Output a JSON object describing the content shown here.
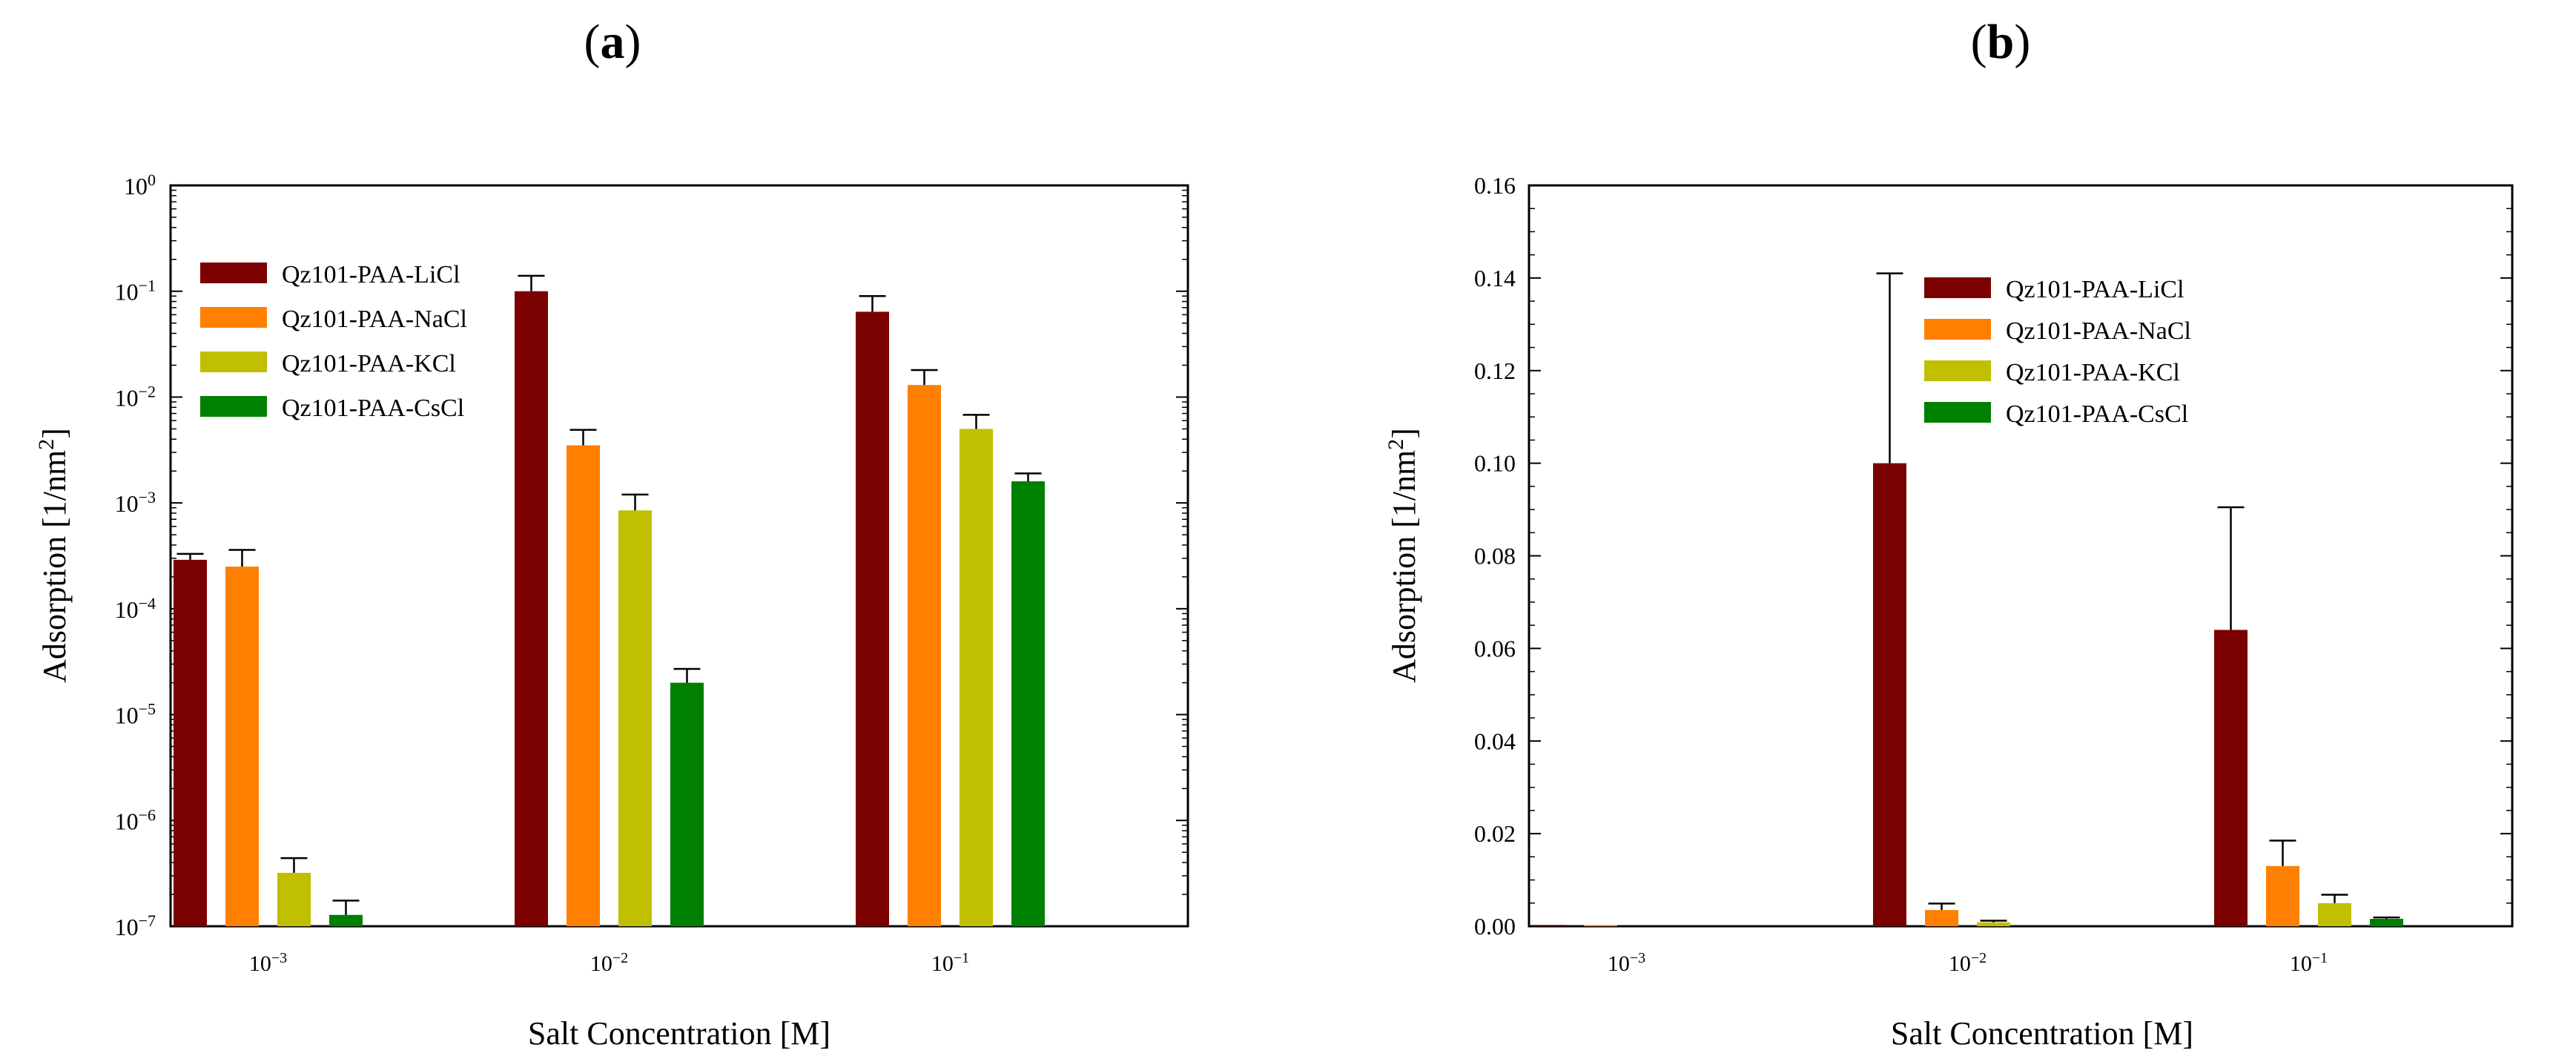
{
  "panels": [
    {
      "label": "(a)",
      "label_letter": "a",
      "ylabel_prefix": "Adsorption [1/nm",
      "ylabel_sup": "2",
      "ylabel_suffix": "]",
      "xlabel": "Salt Concentration [M]"
    },
    {
      "label": "(b)",
      "label_letter": "b",
      "ylabel_prefix": "Adsorption [1/nm",
      "ylabel_sup": "2",
      "ylabel_suffix": "]",
      "xlabel": "Salt Concentration [M]"
    }
  ],
  "chart_data": [
    {
      "type": "bar",
      "panel": "a",
      "yscale": "log",
      "ylim": [
        1e-07,
        1
      ],
      "yticks": [
        {
          "mantissa": "10",
          "exp": "−7"
        },
        {
          "mantissa": "10",
          "exp": "−6"
        },
        {
          "mantissa": "10",
          "exp": "−5"
        },
        {
          "mantissa": "10",
          "exp": "−4"
        },
        {
          "mantissa": "10",
          "exp": "−3"
        },
        {
          "mantissa": "10",
          "exp": "−2"
        },
        {
          "mantissa": "10",
          "exp": "−1"
        },
        {
          "mantissa": "10",
          "exp": "0"
        }
      ],
      "categories": [
        {
          "mantissa": "10",
          "exp": "−3"
        },
        {
          "mantissa": "10",
          "exp": "−2"
        },
        {
          "mantissa": "10",
          "exp": "−1"
        }
      ],
      "xlabel": "Salt Concentration [M]",
      "ylabel": "Adsorption [1/nm2]",
      "legend_position": "top-left",
      "grid": false,
      "series": [
        {
          "name": "Qz101-PAA-LiCl",
          "color": "#7b0000",
          "values": [
            0.00029,
            0.1,
            0.064
          ],
          "errors": [
            0.00033,
            0.14,
            0.09
          ]
        },
        {
          "name": "Qz101-PAA-NaCl",
          "color": "#ff7f00",
          "values": [
            0.00025,
            0.0035,
            0.013
          ],
          "errors": [
            0.00036,
            0.0049,
            0.018
          ]
        },
        {
          "name": "Qz101-PAA-KCl",
          "color": "#c0c000",
          "values": [
            3.2e-07,
            0.00085,
            0.005
          ],
          "errors": [
            4.4e-07,
            0.0012,
            0.0068
          ]
        },
        {
          "name": "Qz101-PAA-CsCl",
          "color": "#008000",
          "values": [
            1.28e-07,
            2e-05,
            0.0016
          ],
          "errors": [
            1.75e-07,
            2.7e-05,
            0.0019
          ]
        }
      ]
    },
    {
      "type": "bar",
      "panel": "b",
      "yscale": "linear",
      "ylim": [
        0,
        0.16
      ],
      "yticks": [
        "0.00",
        "0.02",
        "0.04",
        "0.06",
        "0.08",
        "0.10",
        "0.12",
        "0.14",
        "0.16"
      ],
      "categories": [
        {
          "mantissa": "10",
          "exp": "−3"
        },
        {
          "mantissa": "10",
          "exp": "−2"
        },
        {
          "mantissa": "10",
          "exp": "−1"
        }
      ],
      "xlabel": "Salt Concentration [M]",
      "ylabel": "Adsorption [1/nm2]",
      "legend_position": "top-center",
      "grid": false,
      "series": [
        {
          "name": "Qz101-PAA-LiCl",
          "color": "#7b0000",
          "values": [
            0.00029,
            0.1,
            0.064
          ],
          "errors": [
            0.00033,
            0.141,
            0.0905
          ]
        },
        {
          "name": "Qz101-PAA-NaCl",
          "color": "#ff7f00",
          "values": [
            0.00025,
            0.0035,
            0.013
          ],
          "errors": [
            0.00036,
            0.0049,
            0.0185
          ]
        },
        {
          "name": "Qz101-PAA-KCl",
          "color": "#c0c000",
          "values": [
            3.2e-07,
            0.00085,
            0.005
          ],
          "errors": [
            4.4e-07,
            0.0012,
            0.0068
          ]
        },
        {
          "name": "Qz101-PAA-CsCl",
          "color": "#008000",
          "values": [
            1.28e-07,
            2e-05,
            0.0016
          ],
          "errors": [
            1.75e-07,
            2.7e-05,
            0.0019
          ]
        }
      ]
    }
  ]
}
